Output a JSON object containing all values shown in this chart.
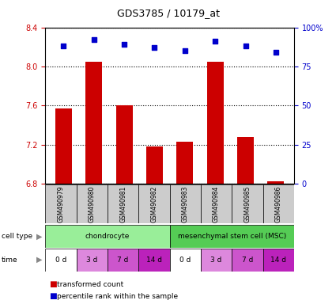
{
  "title": "GDS3785 / 10179_at",
  "samples": [
    "GSM490979",
    "GSM490980",
    "GSM490981",
    "GSM490982",
    "GSM490983",
    "GSM490984",
    "GSM490985",
    "GSM490986"
  ],
  "transformed_count": [
    7.57,
    8.05,
    7.6,
    7.18,
    7.23,
    8.05,
    7.28,
    6.83
  ],
  "percentile_rank": [
    88,
    92,
    89,
    87,
    85,
    91,
    88,
    84
  ],
  "ylim_left": [
    6.8,
    8.4
  ],
  "yticks_left": [
    6.8,
    7.2,
    7.6,
    8.0,
    8.4
  ],
  "ylim_right": [
    0,
    100
  ],
  "yticks_right": [
    0,
    25,
    50,
    75,
    100
  ],
  "ytick_labels_right": [
    "0",
    "25",
    "50",
    "75",
    "100%"
  ],
  "bar_color": "#cc0000",
  "dot_color": "#0000cc",
  "cell_type_groups": [
    {
      "label": "chondrocyte",
      "start": 0,
      "end": 4,
      "color": "#99ee99"
    },
    {
      "label": "mesenchymal stem cell (MSC)",
      "start": 4,
      "end": 8,
      "color": "#55cc55"
    }
  ],
  "time_labels": [
    "0 d",
    "3 d",
    "7 d",
    "14 d",
    "0 d",
    "3 d",
    "7 d",
    "14 d"
  ],
  "time_colors": [
    "#ffffff",
    "#dd88dd",
    "#cc55cc",
    "#bb22bb",
    "#ffffff",
    "#dd88dd",
    "#cc55cc",
    "#bb22bb"
  ],
  "gsm_box_color": "#cccccc",
  "legend_bar_label": "transformed count",
  "legend_dot_label": "percentile rank within the sample",
  "ylabel_left_color": "#cc0000",
  "ylabel_right_color": "#0000cc",
  "cell_type_label": "cell type",
  "time_row_label": "time"
}
